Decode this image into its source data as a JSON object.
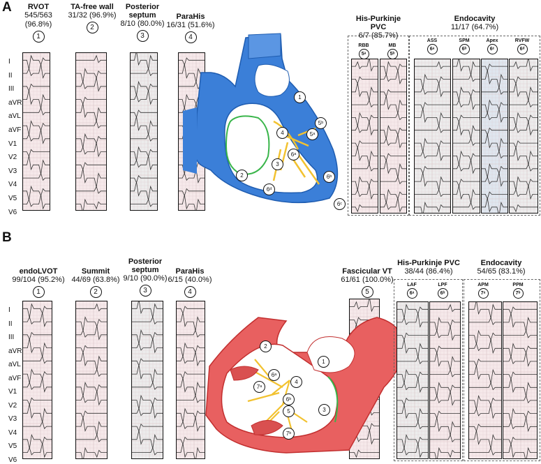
{
  "panelA": {
    "letter": "A",
    "leads": [
      "I",
      "II",
      "III",
      "aVR",
      "aVL",
      "aVF",
      "V1",
      "V2",
      "V3",
      "V4",
      "V5",
      "V6"
    ],
    "sites": [
      {
        "title": "RVOT",
        "stat": "545/563 (96.8%)",
        "num": "1"
      },
      {
        "title": "TA-free wall",
        "stat": "31/32 (96.9%)",
        "num": "2"
      },
      {
        "title": "Posterior septum",
        "stat": "8/10 (80.0%)",
        "num": "3"
      },
      {
        "title": "ParaHis",
        "stat": "16/31 (51.6%)",
        "num": "4"
      }
    ],
    "groups": [
      {
        "title": "His-Purkinje PVC",
        "stat": "6/7 (85.7%)",
        "subs": [
          {
            "label": "RBB",
            "num": "5ᵃ"
          },
          {
            "label": "MB",
            "num": "5ᵇ"
          }
        ]
      },
      {
        "title": "Endocavity",
        "stat": "11/17 (64.7%)",
        "subs": [
          {
            "label": "ASS",
            "num": "6ᵃ"
          },
          {
            "label": "SPM",
            "num": "6ᵇ"
          },
          {
            "label": "Apex",
            "num": "6ᶜ"
          },
          {
            "label": "RVFW",
            "num": "6ᵈ"
          }
        ]
      }
    ],
    "heart_markers": [
      "1",
      "2",
      "3",
      "4",
      "5ᵃ",
      "5ᵇ",
      "6ᵃ",
      "6ᵇ",
      "6ᵈ",
      "6ᶜ"
    ]
  },
  "panelB": {
    "letter": "B",
    "leads": [
      "I",
      "II",
      "III",
      "aVR",
      "aVL",
      "aVF",
      "V1",
      "V2",
      "V3",
      "V4",
      "V5",
      "V6"
    ],
    "sites": [
      {
        "title": "endoLVOT",
        "stat": "99/104 (95.2%)",
        "num": "1"
      },
      {
        "title": "Summit",
        "stat": "44/69 (63.8%)",
        "num": "2"
      },
      {
        "title": "Posterior septum",
        "stat": "9/10 (90.0%)",
        "num": "3"
      },
      {
        "title": "ParaHis",
        "stat": "6/15 (40.0%)",
        "num": "4"
      },
      {
        "title": "Fascicular VT",
        "stat": "61/61 (100.0%)",
        "num": "5"
      }
    ],
    "groups": [
      {
        "title": "His-Purkinje PVC",
        "stat": "38/44 (86.4%)",
        "subs": [
          {
            "label": "LAF",
            "num": "6ᵃ"
          },
          {
            "label": "LPF",
            "num": "6ᵇ"
          }
        ]
      },
      {
        "title": "Endocavity",
        "stat": "54/65 (83.1%)",
        "subs": [
          {
            "label": "APM",
            "num": "7ᵃ"
          },
          {
            "label": "PPM",
            "num": "7ᵇ"
          }
        ]
      }
    ],
    "heart_markers": [
      "2",
      "1",
      "6ᵃ",
      "4",
      "7ᵃ",
      "6ᵇ",
      "5",
      "3",
      "7ᵇ"
    ]
  },
  "colors": {
    "rv_heart": "#3b7fd8",
    "lv_heart": "#e04848",
    "purkinje": "#f2c230",
    "septum_outline": "#39b54a",
    "strip_pink": "#f6e9ea",
    "strip_gray": "#ececec"
  }
}
